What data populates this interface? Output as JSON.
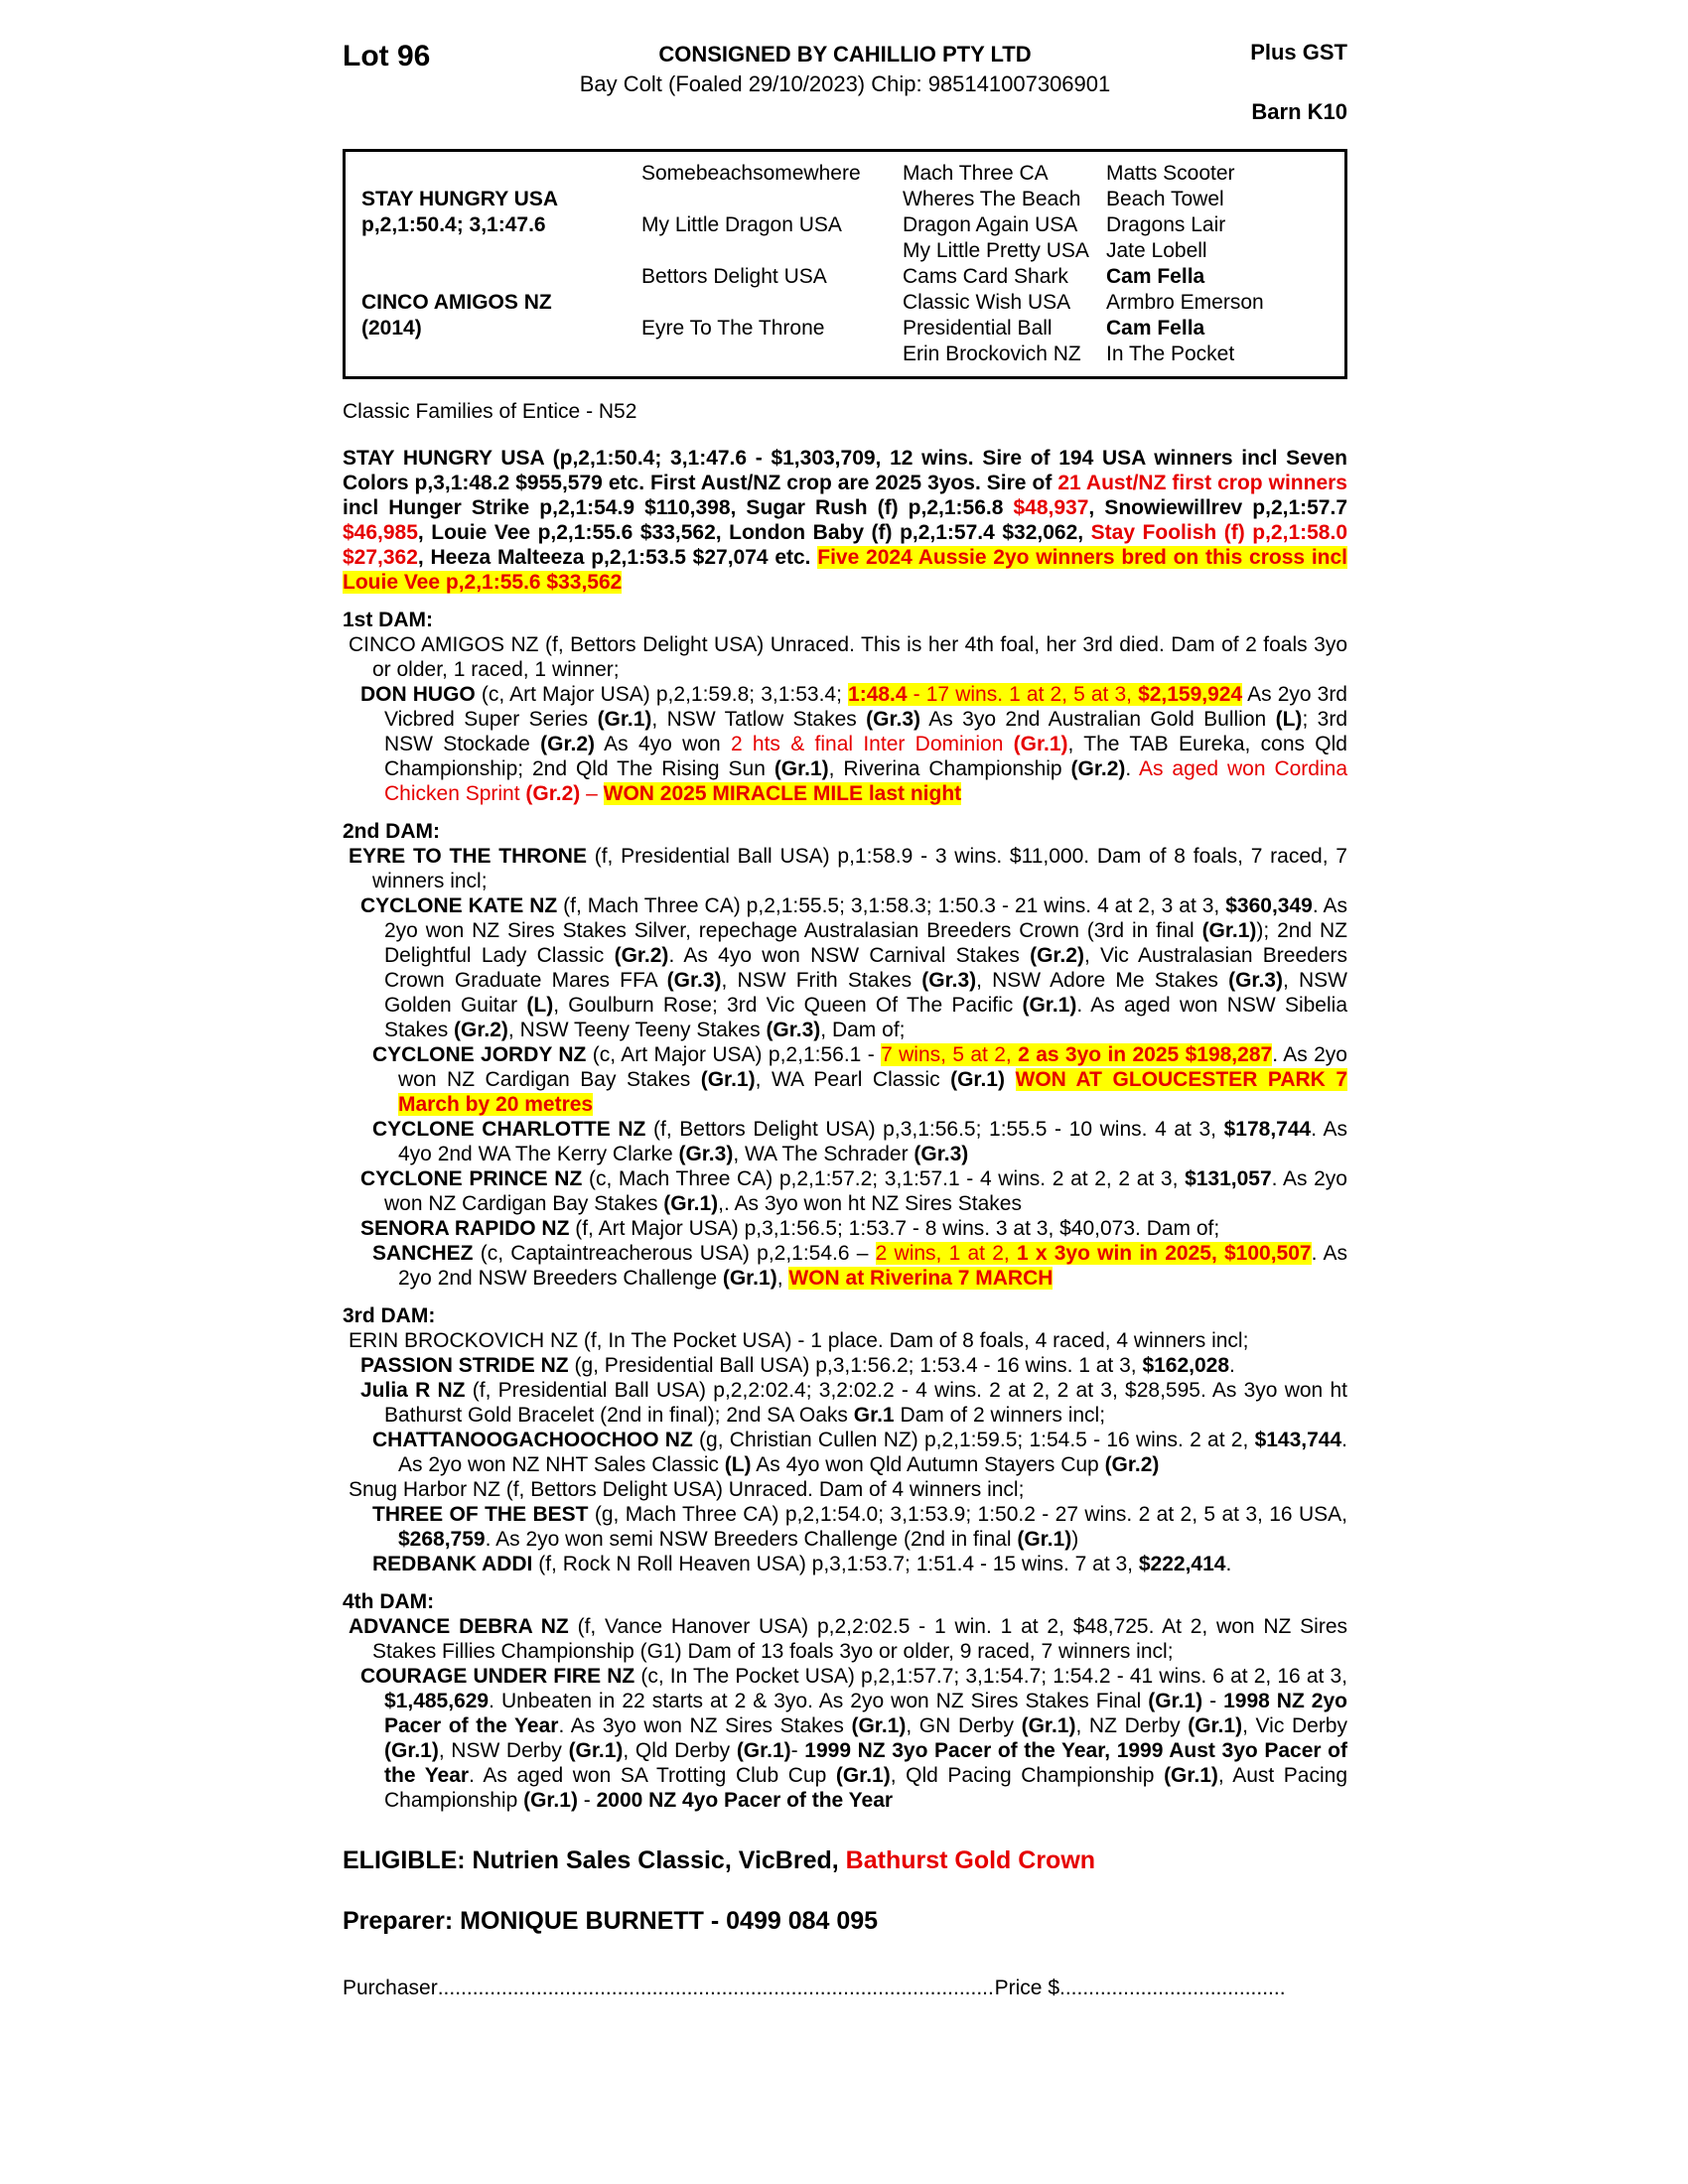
{
  "header": {
    "lot": "Lot 96",
    "consignor": "CONSIGNED BY CAHILLIO PTY LTD",
    "gst": "Plus GST",
    "details": "Bay Colt (Foaled 29/10/2023) Chip: 985141007306901",
    "barn": "Barn K10"
  },
  "pedigree_table": {
    "sire": {
      "name": "STAY HUNGRY USA",
      "record": "p,2,1:50.4; 3,1:47.6"
    },
    "dam": {
      "name": "CINCO AMIGOS NZ",
      "year": "(2014)"
    },
    "gen2": [
      "Somebeachsomewhere",
      "My Little Dragon USA",
      "Bettors Delight USA",
      "Eyre To The Throne"
    ],
    "gen3": [
      "Mach Three CA",
      "Wheres The Beach",
      "Dragon Again USA",
      "My Little Pretty USA",
      "Cams Card Shark",
      "Classic Wish USA",
      "Presidential Ball",
      "Erin Brockovich NZ"
    ],
    "gen4": [
      {
        "t": "Matts Scooter"
      },
      {
        "t": "Beach Towel"
      },
      {
        "t": "Dragons Lair"
      },
      {
        "t": "Jate Lobell"
      },
      {
        "t": "Cam Fella",
        "s": "b"
      },
      {
        "t": "Armbro Emerson"
      },
      {
        "t": "Cam Fella",
        "s": "b"
      },
      {
        "t": "In The Pocket"
      }
    ]
  },
  "blocks": [
    {
      "name": "family-line",
      "cls": "family",
      "segs": [
        {
          "t": "Classic Families of Entice - N52"
        }
      ]
    },
    {
      "name": "sire-summary",
      "cls": "sirepara",
      "segs": [
        {
          "t": "STAY HUNGRY USA (p,2,1:50.4; 3,1:47.6 - $1,303,709, 12 wins. Sire of 194 USA winners incl Seven Colors p,3,1:48.2 $955,579 etc. First Aust/NZ crop are 2025 3yos. Sire of "
        },
        {
          "t": "21 Aust/NZ first crop winners",
          "s": "r"
        },
        {
          "t": " incl Hunger Strike p,2,1:54.9 $110,398, Sugar Rush (f) p,2,1:56.8 "
        },
        {
          "t": "$48,937",
          "s": "r"
        },
        {
          "t": ", Snowiewillrev p,2,1:57.7 "
        },
        {
          "t": "$46,985",
          "s": "r"
        },
        {
          "t": ", Louie Vee p,2,1:55.6 $33,562, London Baby (f) p,2,1:57.4 $32,062, "
        },
        {
          "t": "Stay Foolish (f) p,2,1:58.0 $27,362",
          "s": "r"
        },
        {
          "t": ", Heeza Malteeza p,2,1:53.5 $27,074 etc. "
        },
        {
          "t": "Five 2024 Aussie 2yo winners bred on this cross incl Louie Vee p,2,1:55.6 $33,562",
          "s": "rh"
        }
      ]
    },
    {
      "name": "dam1-heading",
      "cls": "heading",
      "segs": [
        {
          "t": "1st DAM:"
        }
      ]
    },
    {
      "name": "dam1-cinco-amigos",
      "cls": "lvl0",
      "segs": [
        {
          "t": "CINCO AMIGOS NZ (f, Bettors Delight USA) Unraced. This is her 4th foal, her 3rd died. Dam of 2 foals 3yo or older, 1 raced, 1 winner;"
        }
      ]
    },
    {
      "name": "dam1-don-hugo",
      "cls": "lvl1",
      "segs": [
        {
          "t": "DON HUGO ",
          "s": "b"
        },
        {
          "t": "(c, Art Major USA) p,2,1:59.8; 3,1:53.4; "
        },
        {
          "t": "1:48.4",
          "s": "rbh"
        },
        {
          "t": " - 17 wins. 1 at 2, 5 at 3, ",
          "s": "rh"
        },
        {
          "t": "$2,159,924",
          "s": "rbh"
        },
        {
          "t": " As 2yo 3rd Vicbred Super Series "
        },
        {
          "t": "(Gr.1)",
          "s": "b"
        },
        {
          "t": ", NSW Tatlow Stakes "
        },
        {
          "t": "(Gr.3)",
          "s": "b"
        },
        {
          "t": " As 3yo 2nd Australian Gold Bullion "
        },
        {
          "t": "(L)",
          "s": "b"
        },
        {
          "t": "; 3rd NSW Stockade "
        },
        {
          "t": "(Gr.2)",
          "s": "b"
        },
        {
          "t": " As 4yo won "
        },
        {
          "t": "2 hts & final Inter Dominion ",
          "s": "r"
        },
        {
          "t": "(Gr.1)",
          "s": "rb"
        },
        {
          "t": ", The TAB Eureka, cons Qld Championship; 2nd Qld The Rising Sun "
        },
        {
          "t": "(Gr.1)",
          "s": "b"
        },
        {
          "t": ", Riverina Championship "
        },
        {
          "t": "(Gr.2)",
          "s": "b"
        },
        {
          "t": ". "
        },
        {
          "t": "As aged won Cordina Chicken Sprint ",
          "s": "r"
        },
        {
          "t": "(Gr.2)",
          "s": "rb"
        },
        {
          "t": " – ",
          "s": "r"
        },
        {
          "t": "WON 2025 MIRACLE MILE last night",
          "s": "rbh"
        }
      ]
    },
    {
      "name": "dam2-heading",
      "cls": "heading",
      "segs": [
        {
          "t": "2nd DAM:"
        }
      ]
    },
    {
      "name": "dam2-eyre-to-the-throne",
      "cls": "lvl0",
      "segs": [
        {
          "t": "EYRE TO THE THRONE ",
          "s": "b"
        },
        {
          "t": "(f, Presidential Ball USA) p,1:58.9 - 3 wins. $11,000. Dam of 8 foals, 7 raced, 7 winners incl;"
        }
      ]
    },
    {
      "name": "cyclone-kate",
      "cls": "lvl1",
      "segs": [
        {
          "t": "CYCLONE KATE NZ ",
          "s": "b"
        },
        {
          "t": "(f, Mach Three CA) p,2,1:55.5; 3,1:58.3; 1:50.3 - 21 wins. 4 at 2, 3 at 3, "
        },
        {
          "t": "$360,349",
          "s": "b"
        },
        {
          "t": ". As 2yo won NZ Sires Stakes Silver, repechage Australasian Breeders Crown (3rd in final "
        },
        {
          "t": "(Gr.1)",
          "s": "b"
        },
        {
          "t": "); 2nd NZ Delightful Lady Classic "
        },
        {
          "t": "(Gr.2)",
          "s": "b"
        },
        {
          "t": ". As 4yo won NSW Carnival Stakes "
        },
        {
          "t": "(Gr.2)",
          "s": "b"
        },
        {
          "t": ", Vic Australasian Breeders Crown Graduate Mares FFA "
        },
        {
          "t": "(Gr.3)",
          "s": "b"
        },
        {
          "t": ", NSW Frith Stakes "
        },
        {
          "t": "(Gr.3)",
          "s": "b"
        },
        {
          "t": ", NSW Adore Me Stakes "
        },
        {
          "t": "(Gr.3)",
          "s": "b"
        },
        {
          "t": ", NSW Golden Guitar "
        },
        {
          "t": "(L)",
          "s": "b"
        },
        {
          "t": ", Goulburn Rose; 3rd Vic Queen Of The Pacific "
        },
        {
          "t": "(Gr.1)",
          "s": "b"
        },
        {
          "t": ". As aged won NSW Sibelia Stakes "
        },
        {
          "t": "(Gr.2)",
          "s": "b"
        },
        {
          "t": ", NSW Teeny Teeny Stakes "
        },
        {
          "t": "(Gr.3)",
          "s": "b"
        },
        {
          "t": ", Dam of;"
        }
      ]
    },
    {
      "name": "cyclone-jordy",
      "cls": "lvl2",
      "segs": [
        {
          "t": "CYCLONE JORDY NZ ",
          "s": "b"
        },
        {
          "t": "(c, Art Major USA) p,2,1:56.1 - "
        },
        {
          "t": "7 wins, 5 at 2, ",
          "s": "rh"
        },
        {
          "t": "2 as 3yo in 2025 $198,287",
          "s": "rbh"
        },
        {
          "t": ". As 2yo won NZ Cardigan Bay Stakes "
        },
        {
          "t": "(Gr.1)",
          "s": "b"
        },
        {
          "t": ", WA Pearl Classic "
        },
        {
          "t": "(Gr.1)",
          "s": "b"
        },
        {
          "t": " "
        },
        {
          "t": "WON AT GLOUCESTER PARK 7 March by 20 metres",
          "s": "rbh"
        }
      ]
    },
    {
      "name": "cyclone-charlotte",
      "cls": "lvl2",
      "segs": [
        {
          "t": "CYCLONE CHARLOTTE NZ ",
          "s": "b"
        },
        {
          "t": "(f, Bettors Delight USA) p,3,1:56.5; 1:55.5 - 10 wins. 4 at 3, "
        },
        {
          "t": "$178,744",
          "s": "b"
        },
        {
          "t": ". As 4yo 2nd WA The Kerry Clarke "
        },
        {
          "t": "(Gr.3)",
          "s": "b"
        },
        {
          "t": ", WA The Schrader "
        },
        {
          "t": "(Gr.3)",
          "s": "b"
        }
      ]
    },
    {
      "name": "cyclone-prince",
      "cls": "lvl1",
      "segs": [
        {
          "t": "CYCLONE PRINCE NZ ",
          "s": "b"
        },
        {
          "t": "(c, Mach Three CA) p,2,1:57.2; 3,1:57.1 - 4 wins. 2 at 2, 2 at 3, "
        },
        {
          "t": "$131,057",
          "s": "b"
        },
        {
          "t": ". As 2yo won NZ Cardigan Bay Stakes "
        },
        {
          "t": "(Gr.1)",
          "s": "b"
        },
        {
          "t": ",. As 3yo won ht NZ Sires Stakes"
        }
      ]
    },
    {
      "name": "senora-rapido",
      "cls": "lvl1",
      "segs": [
        {
          "t": "SENORA RAPIDO NZ ",
          "s": "b"
        },
        {
          "t": "(f, Art Major USA) p,3,1:56.5; 1:53.7 - 8 wins. 3 at 3, $40,073. Dam of;"
        }
      ]
    },
    {
      "name": "sanchez",
      "cls": "lvl2",
      "segs": [
        {
          "t": "SANCHEZ ",
          "s": "b"
        },
        {
          "t": "(c, Captaintreacherous USA) p,2,1:54.6 – "
        },
        {
          "t": "2 wins, 1 at 2, ",
          "s": "rh"
        },
        {
          "t": "1 x 3yo win in 2025, $100,507",
          "s": "rbh"
        },
        {
          "t": ". As 2yo 2nd NSW Breeders Challenge "
        },
        {
          "t": "(Gr.1)",
          "s": "b"
        },
        {
          "t": ", "
        },
        {
          "t": "WON at Riverina 7 MARCH",
          "s": "rbh"
        }
      ]
    },
    {
      "name": "dam3-heading",
      "cls": "heading",
      "segs": [
        {
          "t": "3rd DAM:"
        }
      ]
    },
    {
      "name": "dam3-erin-brockovich",
      "cls": "lvl0",
      "segs": [
        {
          "t": "ERIN BROCKOVICH NZ (f, In The Pocket USA) - 1 place. Dam of 8 foals, 4 raced, 4 winners incl;"
        }
      ]
    },
    {
      "name": "passion-stride",
      "cls": "lvl1",
      "segs": [
        {
          "t": "PASSION STRIDE NZ ",
          "s": "b"
        },
        {
          "t": "(g, Presidential Ball USA) p,3,1:56.2; 1:53.4 - 16 wins. 1 at 3, "
        },
        {
          "t": "$162,028",
          "s": "b"
        },
        {
          "t": "."
        }
      ]
    },
    {
      "name": "julia-r",
      "cls": "lvl1",
      "segs": [
        {
          "t": "Julia R NZ ",
          "s": "b"
        },
        {
          "t": "(f, Presidential Ball USA) p,2,2:02.4; 3,2:02.2 - 4 wins. 2 at 2, 2 at 3, $28,595. As 3yo won ht Bathurst Gold Bracelet (2nd in final); 2nd SA Oaks "
        },
        {
          "t": "Gr.1",
          "s": "b"
        },
        {
          "t": " Dam of 2 winners incl;"
        }
      ]
    },
    {
      "name": "chattanoogachoochoo",
      "cls": "lvl2",
      "segs": [
        {
          "t": "CHATTANOOGACHOOCHOO NZ ",
          "s": "b"
        },
        {
          "t": "(g, Christian Cullen NZ) p,2,1:59.5; 1:54.5 - 16 wins. 2 at 2, "
        },
        {
          "t": "$143,744",
          "s": "b"
        },
        {
          "t": ". As 2yo won NZ NHT Sales Classic "
        },
        {
          "t": "(L)",
          "s": "b"
        },
        {
          "t": " As 4yo won Qld Autumn Stayers Cup "
        },
        {
          "t": "(Gr.2)",
          "s": "b"
        }
      ]
    },
    {
      "name": "snug-harbor",
      "cls": "lvl0",
      "segs": [
        {
          "t": "Snug Harbor NZ (f, Bettors Delight USA) Unraced. Dam of 4 winners incl;"
        }
      ]
    },
    {
      "name": "three-of-the-best",
      "cls": "lvl2",
      "segs": [
        {
          "t": "THREE OF THE BEST ",
          "s": "b"
        },
        {
          "t": "(g, Mach Three CA) p,2,1:54.0; 3,1:53.9; 1:50.2 - 27 wins. 2 at 2, 5 at 3, 16 USA, "
        },
        {
          "t": "$268,759",
          "s": "b"
        },
        {
          "t": ". As 2yo won semi NSW Breeders Challenge (2nd in final "
        },
        {
          "t": "(Gr.1)",
          "s": "b"
        },
        {
          "t": ")"
        }
      ]
    },
    {
      "name": "redbank-addi",
      "cls": "lvl2",
      "segs": [
        {
          "t": "REDBANK ADDI ",
          "s": "b"
        },
        {
          "t": "(f, Rock N Roll Heaven USA) p,3,1:53.7; 1:51.4 - 15 wins. 7 at 3, "
        },
        {
          "t": "$222,414",
          "s": "b"
        },
        {
          "t": "."
        }
      ]
    },
    {
      "name": "dam4-heading",
      "cls": "heading",
      "segs": [
        {
          "t": "4th DAM:"
        }
      ]
    },
    {
      "name": "dam4-advance-debra",
      "cls": "lvl0",
      "segs": [
        {
          "t": "ADVANCE DEBRA NZ ",
          "s": "b"
        },
        {
          "t": "(f, Vance Hanover USA) p,2,2:02.5 - 1 win. 1 at 2, $48,725. At 2, won NZ Sires Stakes Fillies Championship (G1) Dam of 13 foals 3yo or older, 9 raced, 7 winners incl;"
        }
      ]
    },
    {
      "name": "courage-under-fire",
      "cls": "lvl1",
      "segs": [
        {
          "t": "COURAGE UNDER FIRE NZ ",
          "s": "b"
        },
        {
          "t": "(c, In The Pocket USA) p,2,1:57.7; 3,1:54.7; 1:54.2 - 41 wins. 6 at 2, 16 at 3, "
        },
        {
          "t": "$1,485,629",
          "s": "b"
        },
        {
          "t": ". Unbeaten in 22 starts at 2 & 3yo. As 2yo won NZ Sires Stakes Final "
        },
        {
          "t": "(Gr.1)",
          "s": "b"
        },
        {
          "t": " - "
        },
        {
          "t": "1998 NZ 2yo Pacer of the Year",
          "s": "b"
        },
        {
          "t": ". As 3yo won NZ Sires Stakes "
        },
        {
          "t": "(Gr.1)",
          "s": "b"
        },
        {
          "t": ", GN Derby "
        },
        {
          "t": "(Gr.1)",
          "s": "b"
        },
        {
          "t": ", NZ Derby "
        },
        {
          "t": "(Gr.1)",
          "s": "b"
        },
        {
          "t": ", Vic Derby "
        },
        {
          "t": "(Gr.1)",
          "s": "b"
        },
        {
          "t": ", NSW Derby "
        },
        {
          "t": "(Gr.1)",
          "s": "b"
        },
        {
          "t": ", Qld Derby "
        },
        {
          "t": "(Gr.1)",
          "s": "b"
        },
        {
          "t": "- "
        },
        {
          "t": "1999 NZ 3yo Pacer of the Year, 1999 Aust 3yo Pacer of the Year",
          "s": "b"
        },
        {
          "t": ". As aged won SA Trotting Club Cup "
        },
        {
          "t": "(Gr.1)",
          "s": "b"
        },
        {
          "t": ", Qld Pacing Championship "
        },
        {
          "t": "(Gr.1)",
          "s": "b"
        },
        {
          "t": ", Aust Pacing Championship "
        },
        {
          "t": "(Gr.1)",
          "s": "b"
        },
        {
          "t": " - "
        },
        {
          "t": "2000 NZ 4yo Pacer of the Year",
          "s": "b"
        }
      ]
    },
    {
      "name": "eligible-line",
      "cls": "eligible",
      "segs": [
        {
          "t": "ELIGIBLE: Nutrien Sales Classic, VicBred, ",
          "s": "b"
        },
        {
          "t": "Bathurst Gold Crown",
          "s": "rb"
        }
      ]
    },
    {
      "name": "preparer-line",
      "cls": "preparer",
      "segs": [
        {
          "t": "Preparer: MONIQUE BURNETT - 0499 084 095",
          "s": "b"
        }
      ]
    }
  ],
  "footer": {
    "purchaser_label": "Purchaser",
    "leader1": "..........................................................................................................................................",
    "price_label": "Price $",
    "leader2": "............................................................"
  },
  "colors": {
    "accent_red": "#e60000",
    "highlight_yellow": "#ffff00"
  }
}
